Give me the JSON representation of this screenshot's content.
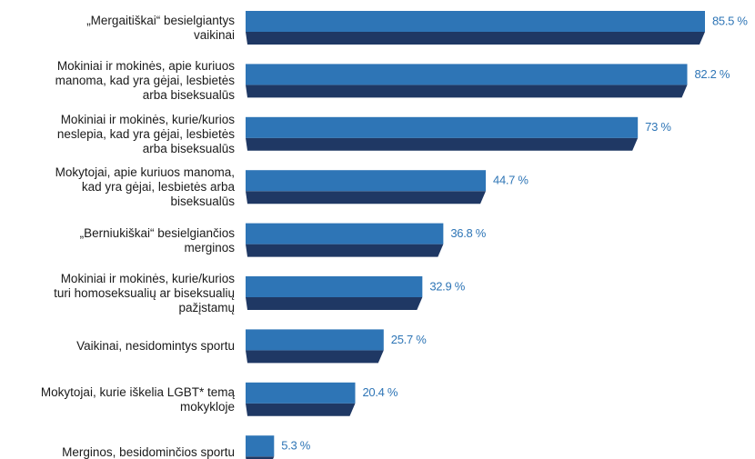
{
  "chart_data": {
    "type": "bar",
    "orientation": "horizontal",
    "categories": [
      "„Mergaitiškai“ besielgiantys\nvaikinai",
      "Mokiniai ir mokinės, apie kuriuos\nmanoma, kad yra gėjai, lesbietės\narba biseksualūs",
      "Mokiniai ir mokinės, kurie/kurios\nneslepia, kad yra gėjai, lesbietės\narba biseksualūs",
      "Mokytojai, apie kuriuos manoma,\nkad yra gėjai, lesbietės arba\nbiseksualūs",
      "„Berniukiškai“ besielgiančios\nmerginos",
      "Mokiniai ir mokinės, kurie/kurios\nturi homoseksualių ar biseksualių\npažįstamų",
      "Vaikinai, nesidomintys sportu",
      "Mokytojai, kurie iškelia LGBT* temą\nmokykloje",
      "Merginos, besidominčios sportu"
    ],
    "values": [
      85.5,
      82.2,
      73,
      44.7,
      36.8,
      32.9,
      25.7,
      20.4,
      5.3
    ],
    "value_labels": [
      "85.5 %",
      "82.2 %",
      "73 %",
      "44.7 %",
      "36.8 %",
      "32.9 %",
      "25.7 %",
      "20.4 %",
      "5.3 %"
    ],
    "color": "#2e75b6",
    "shadow_color": "#1f3864"
  }
}
